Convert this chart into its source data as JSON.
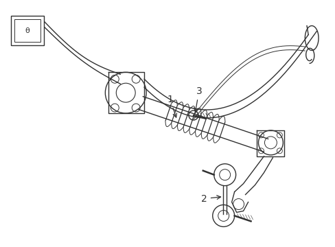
{
  "background_color": "#ffffff",
  "line_color": "#303030",
  "lw": 1.0,
  "fig_w": 4.89,
  "fig_h": 3.6,
  "dpi": 100
}
